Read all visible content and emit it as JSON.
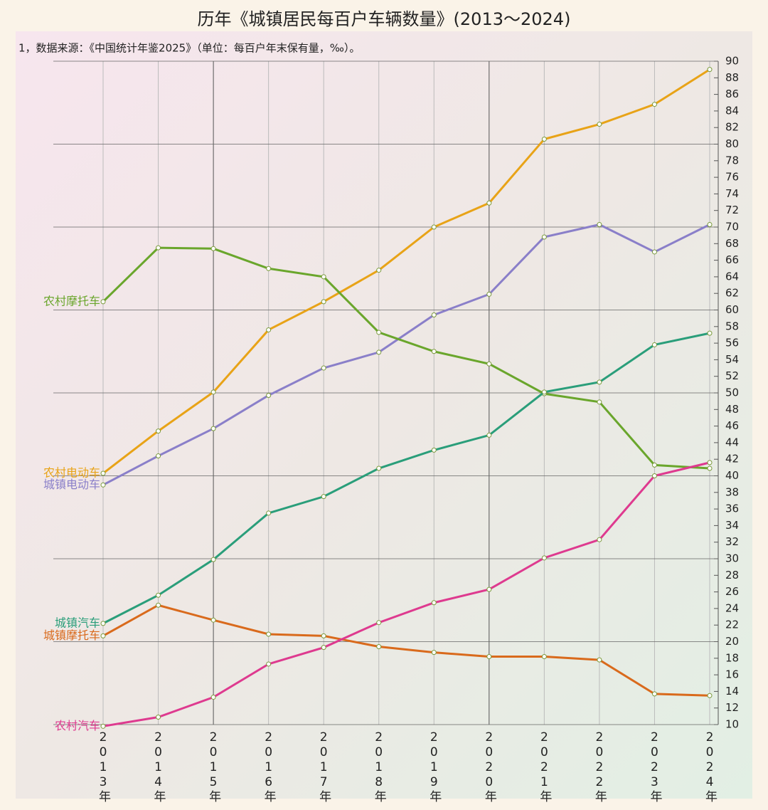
{
  "chart_data": {
    "type": "line",
    "title": "历年《城镇居民每百户车辆数量》(2013～2024)",
    "subtitle": "1，数据来源：《中国统计年鉴2025》（单位：每百户年末保有量，‰）。",
    "categories": [
      "2013年",
      "2014年",
      "2015年",
      "2016年",
      "2017年",
      "2018年",
      "2019年",
      "2020年",
      "2021年",
      "2022年",
      "2023年",
      "2024年"
    ],
    "series": [
      {
        "name": "农村电动车",
        "color": "#e8a317",
        "values": [
          40.3,
          45.4,
          50.1,
          57.6,
          61.0,
          64.8,
          70.0,
          72.9,
          80.6,
          82.4,
          84.8,
          89.0
        ]
      },
      {
        "name": "城镇电动车",
        "color": "#8a7fc9",
        "values": [
          38.9,
          42.4,
          45.7,
          49.7,
          53.0,
          54.9,
          59.4,
          61.9,
          68.8,
          70.3,
          67.0,
          70.3
        ]
      },
      {
        "name": "农村摩托车",
        "color": "#6aa62c",
        "values": [
          61.0,
          67.5,
          67.4,
          65.0,
          64.0,
          57.3,
          55.0,
          53.5,
          49.9,
          48.9,
          41.3,
          40.9
        ]
      },
      {
        "name": "城镇汽车",
        "color": "#2a9e7a",
        "values": [
          22.2,
          25.6,
          29.9,
          35.5,
          37.5,
          40.9,
          43.1,
          44.9,
          50.1,
          51.3,
          55.8,
          57.2
        ]
      },
      {
        "name": "城镇摩托车",
        "color": "#d96a1c",
        "values": [
          20.7,
          24.4,
          22.6,
          20.9,
          20.7,
          19.4,
          18.7,
          18.2,
          18.2,
          17.8,
          13.7,
          13.5
        ]
      },
      {
        "name": "农村汽车",
        "color": "#de3a8f",
        "values": [
          9.8,
          10.9,
          13.3,
          17.3,
          19.3,
          22.3,
          24.7,
          26.3,
          30.1,
          32.3,
          40.0,
          41.6
        ]
      }
    ],
    "ylim": [
      10,
      90
    ],
    "yticks": [
      10,
      12,
      14,
      16,
      18,
      20,
      22,
      24,
      26,
      28,
      30,
      32,
      34,
      36,
      38,
      40,
      42,
      44,
      46,
      48,
      50,
      52,
      54,
      56,
      58,
      60,
      62,
      64,
      66,
      68,
      70,
      72,
      74,
      76,
      78,
      80,
      82,
      84,
      86,
      88,
      90
    ],
    "grid": true
  }
}
